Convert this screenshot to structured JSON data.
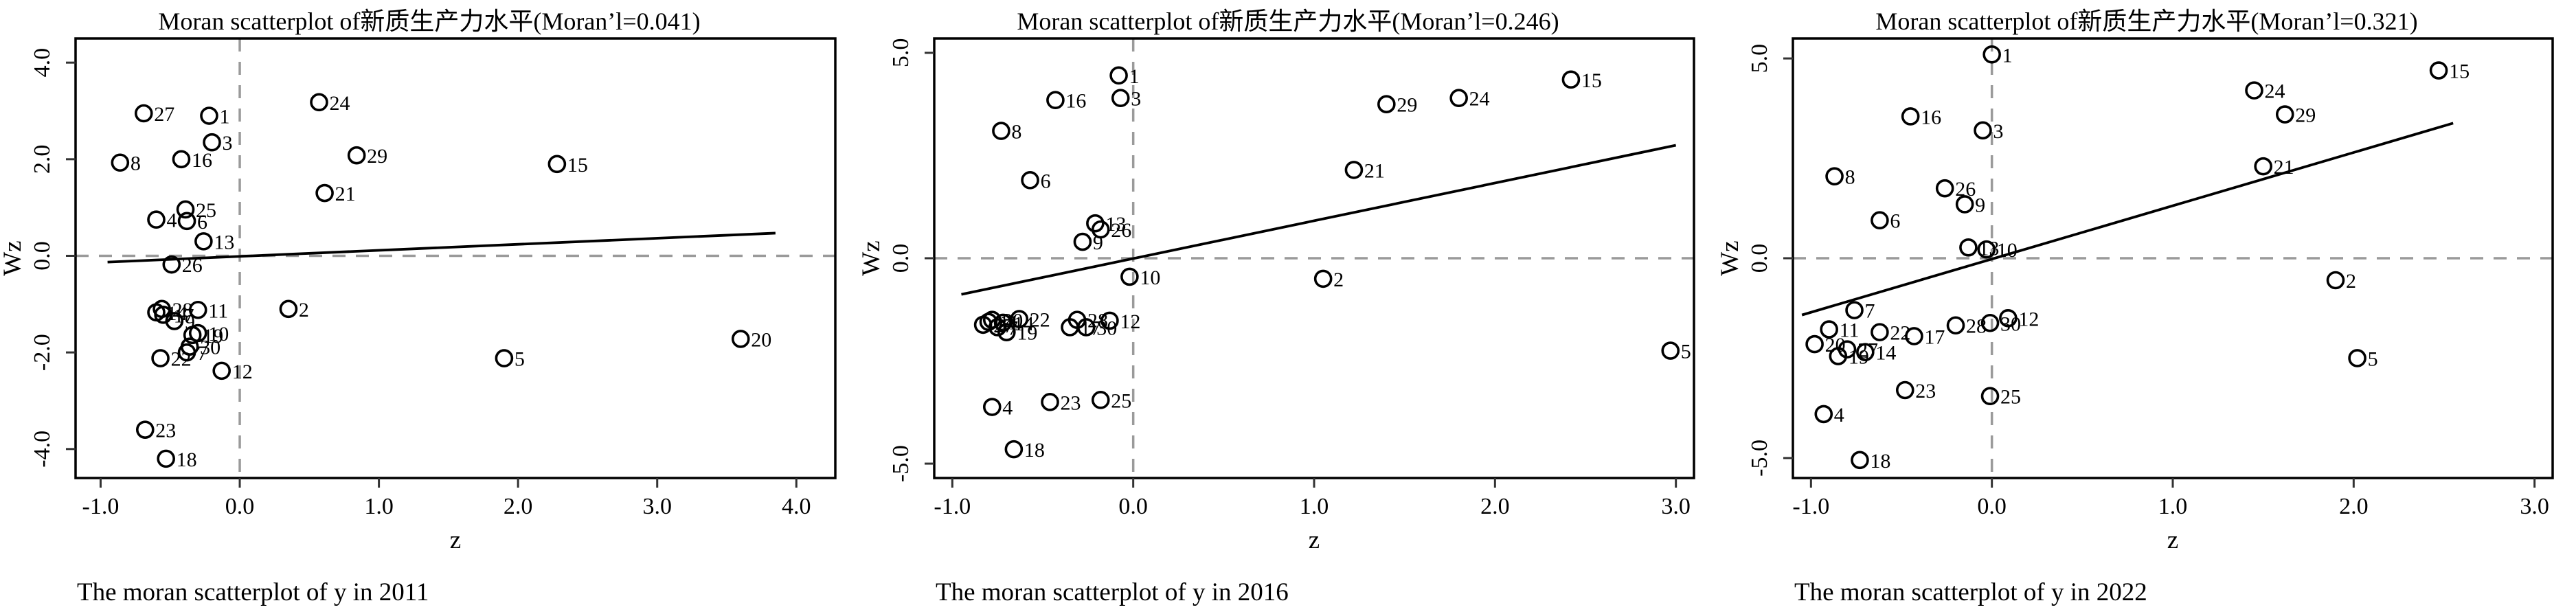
{
  "figure": {
    "background": "#ffffff",
    "styles": {
      "point_color": "#000000",
      "fit_line_color": "#000000",
      "refline_color": "#9a9a9a",
      "frame_color": "#000000",
      "tick_color": "#333333",
      "text_color": "#000000"
    }
  },
  "chart_data": [
    {
      "type": "scatter",
      "title": "Moran scatterplot of新质生产力水平(Moran’l=0.041)",
      "caption": "The moran scatterplot of y in 2011",
      "moran_i": "0.041",
      "xlabel": "z",
      "ylabel": "Wz",
      "xlim": [
        -1.18,
        4.28
      ],
      "ylim": [
        -4.6,
        4.5
      ],
      "xticks": [
        -1.0,
        0.0,
        1.0,
        2.0,
        3.0,
        4.0
      ],
      "yticks": [
        -4.0,
        -2.0,
        0.0,
        2.0,
        4.0
      ],
      "reference_lines": {
        "x": 0.0,
        "y": 0.0
      },
      "fit_line": {
        "x1": -0.95,
        "y1": -0.13,
        "x2": 3.85,
        "y2": 0.47
      },
      "points": [
        {
          "label": "1",
          "x": -0.22,
          "y": 2.9
        },
        {
          "label": "2",
          "x": 0.35,
          "y": -1.1
        },
        {
          "label": "3",
          "x": -0.2,
          "y": 2.35
        },
        {
          "label": "4",
          "x": -0.6,
          "y": 0.75
        },
        {
          "label": "5",
          "x": 1.9,
          "y": -2.12
        },
        {
          "label": "6",
          "x": -0.38,
          "y": 0.72
        },
        {
          "label": "7",
          "x": -0.38,
          "y": -2.0
        },
        {
          "label": "8",
          "x": -0.86,
          "y": 1.93
        },
        {
          "label": "9",
          "x": -0.47,
          "y": -1.35
        },
        {
          "label": "10",
          "x": -0.3,
          "y": -1.6
        },
        {
          "label": "11",
          "x": -0.3,
          "y": -1.12
        },
        {
          "label": "12",
          "x": -0.13,
          "y": -2.38
        },
        {
          "label": "13",
          "x": -0.26,
          "y": 0.3
        },
        {
          "label": "14",
          "x": -0.6,
          "y": -1.17
        },
        {
          "label": "15",
          "x": 2.28,
          "y": 1.9
        },
        {
          "label": "16",
          "x": -0.42,
          "y": 2.0
        },
        {
          "label": "17",
          "x": -0.55,
          "y": -1.22
        },
        {
          "label": "18",
          "x": -0.53,
          "y": -4.2
        },
        {
          "label": "19",
          "x": -0.34,
          "y": -1.64
        },
        {
          "label": "20",
          "x": 3.6,
          "y": -1.72
        },
        {
          "label": "21",
          "x": 0.61,
          "y": 1.3
        },
        {
          "label": "22",
          "x": -0.57,
          "y": -2.12
        },
        {
          "label": "23",
          "x": -0.68,
          "y": -3.6
        },
        {
          "label": "24",
          "x": 0.57,
          "y": 3.18
        },
        {
          "label": "25",
          "x": -0.39,
          "y": 0.96
        },
        {
          "label": "26",
          "x": -0.49,
          "y": -0.18
        },
        {
          "label": "27",
          "x": -0.69,
          "y": 2.95
        },
        {
          "label": "28",
          "x": -0.56,
          "y": -1.1
        },
        {
          "label": "29",
          "x": 0.84,
          "y": 2.08
        },
        {
          "label": "30",
          "x": -0.36,
          "y": -1.88
        }
      ]
    },
    {
      "type": "scatter",
      "title": "Moran scatterplot of新质生产力水平(Moran’l=0.246)",
      "caption": "The moran scatterplot of y in 2016",
      "moran_i": "0.246",
      "xlabel": "z",
      "ylabel": "Wz",
      "xlim": [
        -1.1,
        3.1
      ],
      "ylim": [
        -5.35,
        5.35
      ],
      "xticks": [
        -1.0,
        0.0,
        1.0,
        2.0,
        3.0
      ],
      "yticks": [
        -5.0,
        0.0,
        5.0
      ],
      "reference_lines": {
        "x": 0.0,
        "y": 0.0
      },
      "fit_line": {
        "x1": -0.95,
        "y1": -0.88,
        "x2": 3.0,
        "y2": 2.75
      },
      "points": [
        {
          "label": "1",
          "x": -0.08,
          "y": 4.45
        },
        {
          "label": "2",
          "x": 1.05,
          "y": -0.5
        },
        {
          "label": "3",
          "x": -0.07,
          "y": 3.9
        },
        {
          "label": "4",
          "x": -0.78,
          "y": -3.62
        },
        {
          "label": "5",
          "x": 2.97,
          "y": -2.25
        },
        {
          "label": "6",
          "x": -0.57,
          "y": 1.9
        },
        {
          "label": "7",
          "x": -0.75,
          "y": -1.68
        },
        {
          "label": "8",
          "x": -0.73,
          "y": 3.1
        },
        {
          "label": "9",
          "x": -0.28,
          "y": 0.4
        },
        {
          "label": "10",
          "x": -0.02,
          "y": -0.45
        },
        {
          "label": "11",
          "x": -0.8,
          "y": -1.55
        },
        {
          "label": "12",
          "x": -0.13,
          "y": -1.52
        },
        {
          "label": "13",
          "x": -0.21,
          "y": 0.85
        },
        {
          "label": "14",
          "x": -0.72,
          "y": -1.57
        },
        {
          "label": "15",
          "x": 2.42,
          "y": 4.35
        },
        {
          "label": "16",
          "x": -0.43,
          "y": 3.85
        },
        {
          "label": "17",
          "x": -0.35,
          "y": -1.68
        },
        {
          "label": "18",
          "x": -0.66,
          "y": -4.65
        },
        {
          "label": "19",
          "x": -0.7,
          "y": -1.8
        },
        {
          "label": "20",
          "x": -0.78,
          "y": -1.5
        },
        {
          "label": "21",
          "x": 1.22,
          "y": 2.15
        },
        {
          "label": "22",
          "x": -0.63,
          "y": -1.48
        },
        {
          "label": "23",
          "x": -0.46,
          "y": -3.5
        },
        {
          "label": "24",
          "x": 1.8,
          "y": 3.9
        },
        {
          "label": "25",
          "x": -0.18,
          "y": -3.45
        },
        {
          "label": "26",
          "x": -0.18,
          "y": 0.7
        },
        {
          "label": "27",
          "x": -0.83,
          "y": -1.62
        },
        {
          "label": "28",
          "x": -0.31,
          "y": -1.5
        },
        {
          "label": "29",
          "x": 1.4,
          "y": 3.75
        },
        {
          "label": "30",
          "x": -0.26,
          "y": -1.68
        }
      ]
    },
    {
      "type": "scatter",
      "title": "Moran scatterplot of新质生产力水平(Moran’l=0.321)",
      "caption": "The moran scatterplot of y in 2022",
      "moran_i": "0.321",
      "xlabel": "z",
      "ylabel": "Wz",
      "xlim": [
        -1.1,
        3.1
      ],
      "ylim": [
        -5.5,
        5.5
      ],
      "xticks": [
        -1.0,
        0.0,
        1.0,
        2.0,
        3.0
      ],
      "yticks": [
        -5.0,
        0.0,
        5.0
      ],
      "reference_lines": {
        "x": 0.0,
        "y": 0.0
      },
      "fit_line": {
        "x1": -1.05,
        "y1": -1.42,
        "x2": 2.55,
        "y2": 3.38
      },
      "points": [
        {
          "label": "1",
          "x": 0.0,
          "y": 5.1
        },
        {
          "label": "2",
          "x": 1.9,
          "y": -0.55
        },
        {
          "label": "3",
          "x": -0.05,
          "y": 3.2
        },
        {
          "label": "4",
          "x": -0.93,
          "y": -3.9
        },
        {
          "label": "5",
          "x": 2.02,
          "y": -2.5
        },
        {
          "label": "6",
          "x": -0.62,
          "y": 0.95
        },
        {
          "label": "7",
          "x": -0.76,
          "y": -1.3
        },
        {
          "label": "8",
          "x": -0.87,
          "y": 2.05
        },
        {
          "label": "9",
          "x": -0.15,
          "y": 1.35
        },
        {
          "label": "10",
          "x": -0.03,
          "y": 0.22
        },
        {
          "label": "11",
          "x": -0.9,
          "y": -1.78
        },
        {
          "label": "12",
          "x": 0.09,
          "y": -1.5
        },
        {
          "label": "13",
          "x": -0.13,
          "y": 0.27
        },
        {
          "label": "14",
          "x": -0.7,
          "y": -2.35
        },
        {
          "label": "15",
          "x": 2.47,
          "y": 4.7
        },
        {
          "label": "16",
          "x": -0.45,
          "y": 3.55
        },
        {
          "label": "17",
          "x": -0.43,
          "y": -1.95
        },
        {
          "label": "18",
          "x": -0.73,
          "y": -5.05
        },
        {
          "label": "19",
          "x": -0.85,
          "y": -2.45
        },
        {
          "label": "20",
          "x": -0.98,
          "y": -2.15
        },
        {
          "label": "21",
          "x": 1.5,
          "y": 2.3
        },
        {
          "label": "22",
          "x": -0.62,
          "y": -1.85
        },
        {
          "label": "23",
          "x": -0.48,
          "y": -3.3
        },
        {
          "label": "24",
          "x": 1.45,
          "y": 4.2
        },
        {
          "label": "25",
          "x": -0.01,
          "y": -3.45
        },
        {
          "label": "26",
          "x": -0.26,
          "y": 1.75
        },
        {
          "label": "27",
          "x": -0.8,
          "y": -2.28
        },
        {
          "label": "28",
          "x": -0.2,
          "y": -1.68
        },
        {
          "label": "29",
          "x": 1.62,
          "y": 3.6
        },
        {
          "label": "30",
          "x": -0.01,
          "y": -1.62
        }
      ]
    }
  ]
}
